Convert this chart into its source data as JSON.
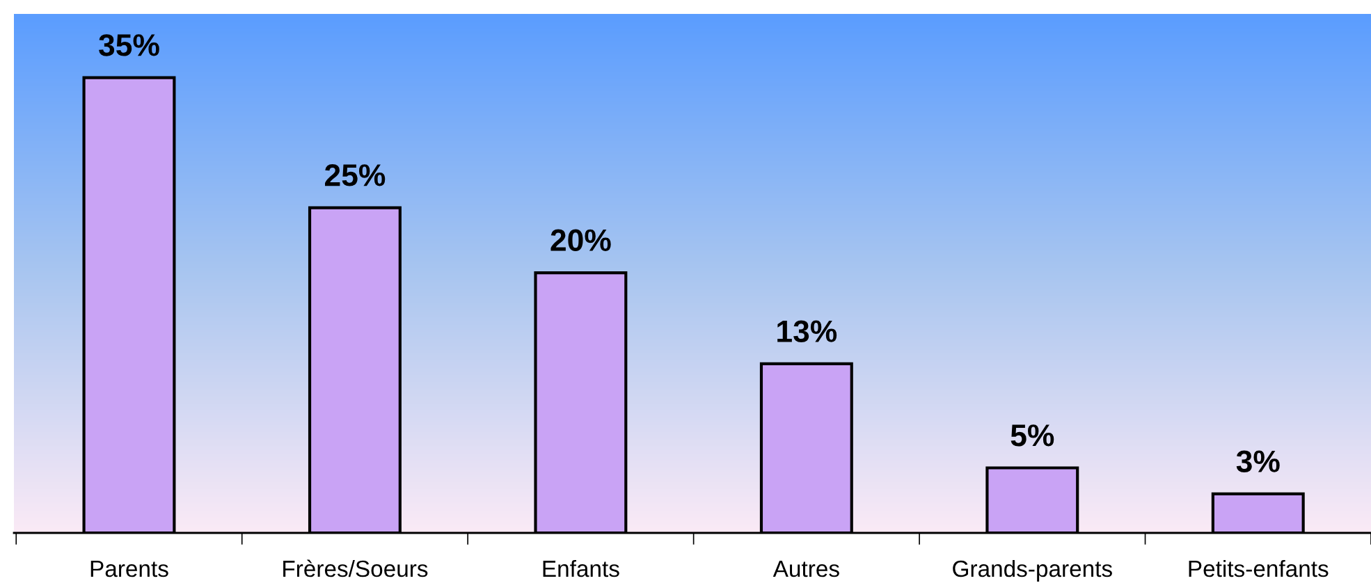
{
  "chart_data": {
    "type": "bar",
    "categories": [
      "Parents",
      "Frères/Soeurs",
      "Enfants",
      "Autres",
      "Grands-parents",
      "Petits-enfants"
    ],
    "values": [
      35,
      25,
      20,
      13,
      5,
      3
    ],
    "value_labels": [
      "35%",
      "25%",
      "20%",
      "13%",
      "5%",
      "3%"
    ],
    "color": "#c9a3f5",
    "grid": false,
    "legend": false
  }
}
